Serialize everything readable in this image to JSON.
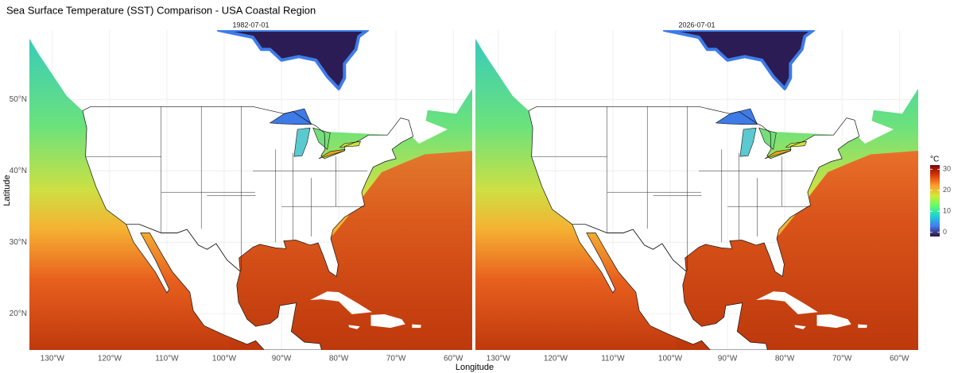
{
  "title": "Sea Surface Temperature (SST) Comparison - USA Coastal Region",
  "x_label": "Longitude",
  "y_label": "Latitude",
  "xlim": [
    -134,
    -56.7
  ],
  "ylim": [
    14.9,
    59.7
  ],
  "xticks": [
    {
      "value": -130,
      "label": "130°W"
    },
    {
      "value": -120,
      "label": "120°W"
    },
    {
      "value": -110,
      "label": "110°W"
    },
    {
      "value": -100,
      "label": "100°W"
    },
    {
      "value": -90,
      "label": "90°W"
    },
    {
      "value": -80,
      "label": "80°W"
    },
    {
      "value": -70,
      "label": "70°W"
    },
    {
      "value": -60,
      "label": "60°W"
    }
  ],
  "yticks": [
    {
      "value": 20,
      "label": "20°N"
    },
    {
      "value": 30,
      "label": "30°N"
    },
    {
      "value": 40,
      "label": "40°N"
    },
    {
      "value": 50,
      "label": "50°N"
    }
  ],
  "grid": true,
  "panels": [
    {
      "title": "1982-07-01"
    },
    {
      "title": "2026-07-01"
    }
  ],
  "legend": {
    "title": "°C",
    "limits": [
      -2,
      32
    ],
    "ticks": [
      0,
      10,
      20,
      30
    ],
    "colors": [
      "#30123b",
      "#4777ef",
      "#1bd0d5",
      "#62fc6b",
      "#d2e935",
      "#fe9b2d",
      "#db3a07",
      "#7a0403"
    ]
  }
}
